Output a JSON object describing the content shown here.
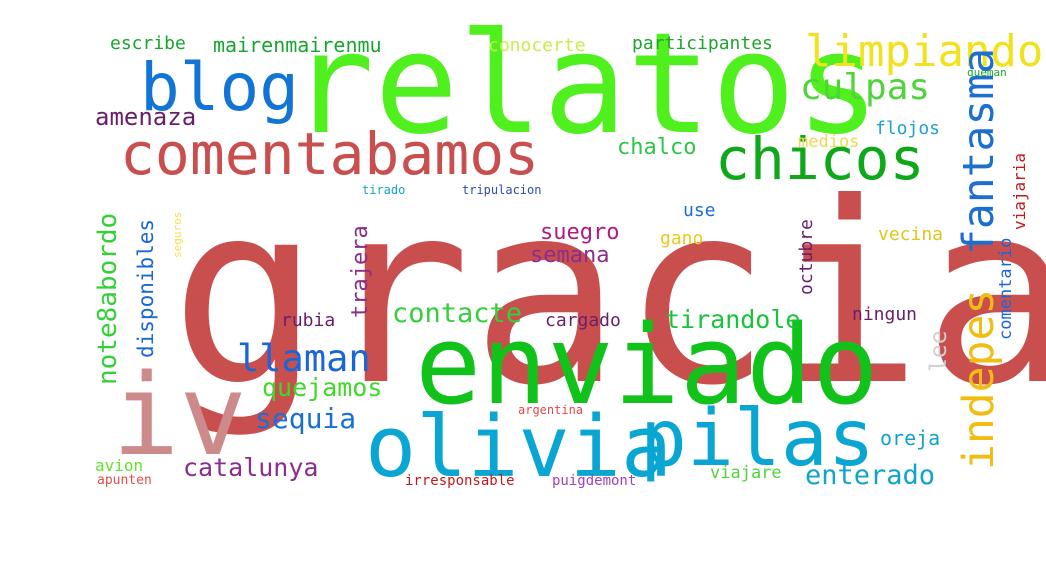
{
  "words": [
    {
      "text": "gracias",
      "color": "#c94f4f"
    },
    {
      "text": "relatos",
      "color": "#4ff01e"
    },
    {
      "text": "enviado",
      "color": "#11c21b"
    },
    {
      "text": "olivia",
      "color": "#0aa6d3"
    },
    {
      "text": "pilas",
      "color": "#0aa6d3"
    },
    {
      "text": "iv",
      "color": "#cc8a8a"
    },
    {
      "text": "comentabamos",
      "color": "#c94f4f"
    },
    {
      "text": "blog",
      "color": "#1274d4"
    },
    {
      "text": "chicos",
      "color": "#10a81b"
    },
    {
      "text": "limpiando",
      "color": "#f2e21d"
    },
    {
      "text": "culpas",
      "color": "#4fd43a"
    },
    {
      "text": "fantasma",
      "color": "#1c6fd0"
    },
    {
      "text": "indepes",
      "color": "#f2bd12"
    },
    {
      "text": "llaman",
      "color": "#1a66d8"
    },
    {
      "text": "contacte",
      "color": "#35cf3b"
    },
    {
      "text": "quejamos",
      "color": "#3ed829"
    },
    {
      "text": "sequia",
      "color": "#1a6fd6"
    },
    {
      "text": "catalunya",
      "color": "#8a2d8c"
    },
    {
      "text": "enterado",
      "color": "#11a4c9"
    },
    {
      "text": "tirandole",
      "color": "#18c43a"
    },
    {
      "text": "amenaza",
      "color": "#6a1e6a"
    },
    {
      "text": "note8abordo",
      "color": "#33d135"
    },
    {
      "text": "mairenmairenmu",
      "color": "#17a62f"
    },
    {
      "text": "escribe",
      "color": "#17a62f"
    },
    {
      "text": "conocerte",
      "color": "#c8ee4a"
    },
    {
      "text": "participantes",
      "color": "#1fa42d"
    },
    {
      "text": "chalco",
      "color": "#2ec54a"
    },
    {
      "text": "medios",
      "color": "#f0d84d"
    },
    {
      "text": "flojos",
      "color": "#1ea2cf"
    },
    {
      "text": "suegro",
      "color": "#b01b7e"
    },
    {
      "text": "semana",
      "color": "#8a2d8c"
    },
    {
      "text": "use",
      "color": "#1c6fd0"
    },
    {
      "text": "gano",
      "color": "#f2c61a"
    },
    {
      "text": "vecina",
      "color": "#e3c41a"
    },
    {
      "text": "octubre",
      "color": "#6a1e6a"
    },
    {
      "text": "ningun",
      "color": "#6a1e6a"
    },
    {
      "text": "lee",
      "color": "#d0d0d0"
    },
    {
      "text": "rubia",
      "color": "#6a1e6a"
    },
    {
      "text": "trajera",
      "color": "#8a2d8c"
    },
    {
      "text": "cargado",
      "color": "#6a1e6a"
    },
    {
      "text": "disponibles",
      "color": "#1a66d8"
    },
    {
      "text": "comentario",
      "color": "#1a66d8"
    },
    {
      "text": "viajaria",
      "color": "#c0191e"
    },
    {
      "text": "oreja",
      "color": "#11a4c9"
    },
    {
      "text": "viajare",
      "color": "#4fd43a"
    },
    {
      "text": "avion",
      "color": "#64e22a"
    },
    {
      "text": "apunten",
      "color": "#e34a4a"
    },
    {
      "text": "argentina",
      "color": "#e34a4a"
    },
    {
      "text": "irresponsable",
      "color": "#c0191e"
    },
    {
      "text": "puigdemont",
      "color": "#a23fbf"
    },
    {
      "text": "tirado",
      "color": "#11a4c9"
    },
    {
      "text": "tripulacion",
      "color": "#2e4fa8"
    },
    {
      "text": "seguros",
      "color": "#f2e24d"
    },
    {
      "text": "queman",
      "color": "#1fa42d"
    }
  ]
}
